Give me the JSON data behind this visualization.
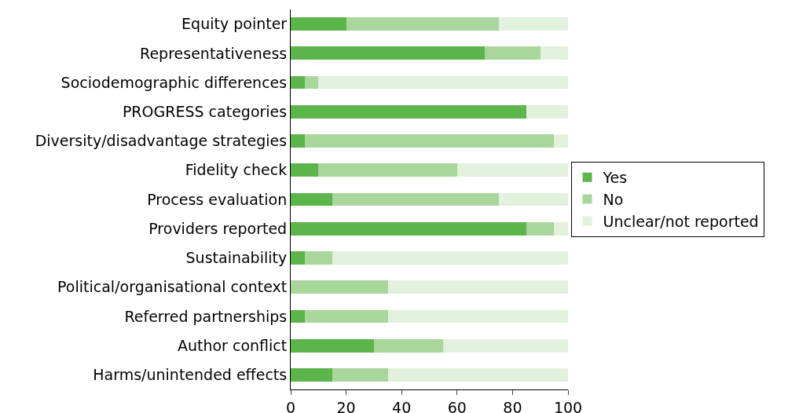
{
  "chart_data": {
    "type": "bar",
    "orientation": "horizontal",
    "stacked": true,
    "legend": "right",
    "grid": false,
    "categories": [
      "Equity pointer",
      "Representativeness",
      "Sociodemographic differences",
      "PROGRESS categories",
      "Diversity/disadvantage strategies",
      "Fidelity check",
      "Process evaluation",
      "Providers reported",
      "Sustainability",
      "Political/organisational context",
      "Referred partnerships",
      "Author conflict",
      "Harms/unintended effects"
    ],
    "series": [
      {
        "name": "Yes",
        "color": "#5cb54a",
        "values": [
          20,
          70,
          5,
          85,
          5,
          10,
          15,
          85,
          5,
          0,
          5,
          30,
          15
        ]
      },
      {
        "name": "No",
        "color": "#a9d69a",
        "values": [
          55,
          20,
          5,
          0,
          90,
          50,
          60,
          10,
          10,
          35,
          30,
          25,
          20
        ]
      },
      {
        "name": "Unclear/not reported",
        "color": "#e2f1dc",
        "values": [
          25,
          10,
          90,
          15,
          5,
          40,
          25,
          5,
          85,
          65,
          65,
          45,
          65
        ]
      }
    ],
    "xlim": [
      0,
      100
    ],
    "xticks": [
      0,
      20,
      40,
      60,
      80,
      100
    ]
  }
}
